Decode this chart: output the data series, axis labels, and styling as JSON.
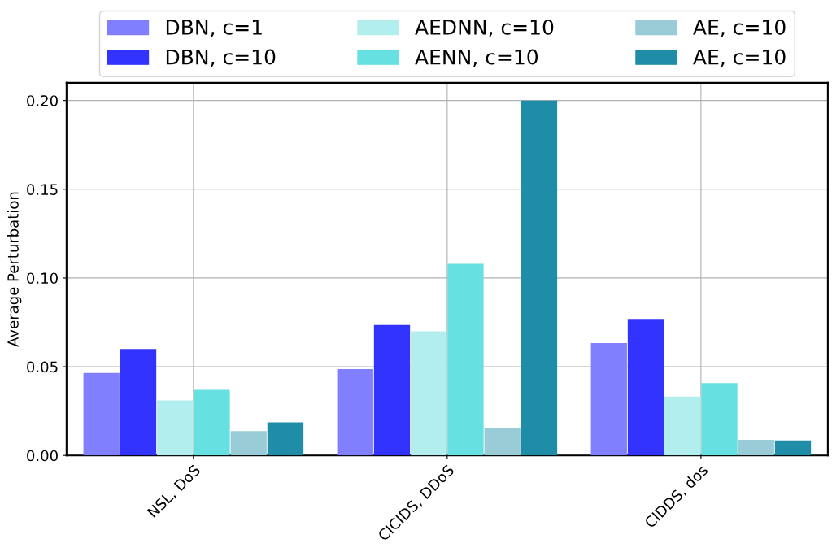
{
  "chart_data": {
    "type": "bar",
    "ylabel": "Average Perturbation",
    "categories": [
      "NSL, DoS",
      "CICIDS, DDoS",
      "CIDDS, dos"
    ],
    "series": [
      {
        "name": "DBN, c=1",
        "color": "#8080ff",
        "values": [
          0.0465,
          0.0487,
          0.0633
        ]
      },
      {
        "name": "DBN, c=10",
        "color": "#3333ff",
        "values": [
          0.06,
          0.0735,
          0.0765
        ]
      },
      {
        "name": "AEDNN, c=10",
        "color": "#b3eeee",
        "values": [
          0.031,
          0.07,
          0.0332
        ]
      },
      {
        "name": "AENN, c=10",
        "color": "#66e0e0",
        "values": [
          0.037,
          0.108,
          0.0407
        ]
      },
      {
        "name": "AE, c=10",
        "color": "#99ccd6",
        "values": [
          0.0137,
          0.0155,
          0.0088
        ]
      },
      {
        "name": "AE, c=10",
        "color": "#1f8ca8",
        "values": [
          0.0186,
          0.2,
          0.0084
        ]
      }
    ],
    "ylim": [
      0,
      0.21
    ],
    "yticks": [
      {
        "value": 0,
        "label": "0.00"
      },
      {
        "value": 0.05,
        "label": "0.05"
      },
      {
        "value": 0.1,
        "label": "0.10"
      },
      {
        "value": 0.15,
        "label": "0.15"
      },
      {
        "value": 0.2,
        "label": "0.20"
      }
    ],
    "grid": true,
    "legend": "top"
  }
}
